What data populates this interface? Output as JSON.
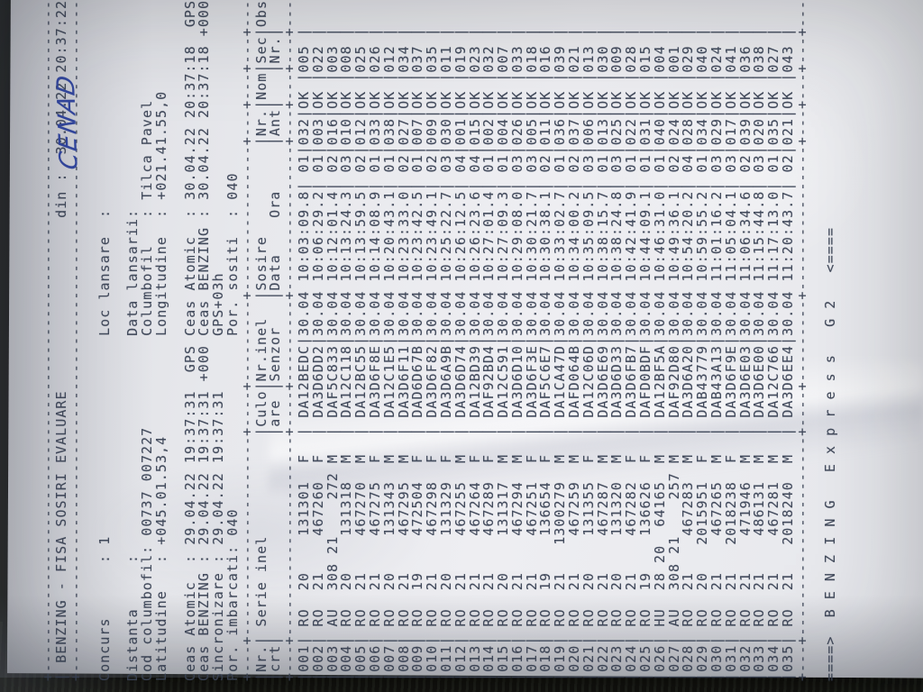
{
  "photo": {
    "paper_color": "#eaebef",
    "ink_color": "#3e4658",
    "pen_color": "#33479f",
    "background_color": "#121410"
  },
  "document": {
    "title": "BENZING - FISA SOSIRI EVALUARE",
    "din_label": "din :",
    "din_value": "30.04.22 20:37:22",
    "handwriting": "CENAD",
    "labels": {
      "concurs": "Concurs      : ",
      "loc_lansare": "Loc lansare  :",
      "distanta": "Distanta     :",
      "data_lansarii": "Data lansarii:",
      "cod_columbofil": "Cod columbofil: ",
      "columbofil": "Columbofil   : ",
      "latitudine": "Latitudine   : ",
      "longitudine": "Longitudine  : ",
      "ceas_atomic": "Ceas Atomic  : ",
      "ceas_benzing": "Ceas BENZING : ",
      "sincronizare": "Sincronizare : ",
      "por_imbarcati": "Por. imbarcati: ",
      "por_sositi": "Por. sositi  : "
    },
    "values": {
      "concurs": "1",
      "cod_columbofil": "00737 007227",
      "columbofil": "Tilca Pavel",
      "latitudine": "+045.01.53,4",
      "longitudine": "+021.41.55,0",
      "ceas_atomic_1": "29.04.22 19:37:31",
      "ceas_atomic_1_suffix": "GPS",
      "ceas_atomic_2": "30.04.22 20:37:18",
      "ceas_atomic_2_suffix": "GPS",
      "ceas_benzing_1": "29.04.22 19:37:31",
      "ceas_benzing_1_suffix": "+000",
      "ceas_benzing_2": "30.04.22 20:37:18",
      "ceas_benzing_2_suffix": "+000",
      "sincronizare": "29.04.22 19:37:31",
      "gps_offset": "GPS+03h",
      "por_imbarcati": "040",
      "por_sositi": "040"
    },
    "table": {
      "header_row_1": [
        "Nr.",
        "Serie inel",
        "Culo",
        "Nr.inel",
        "Sosire",
        "Nr.",
        "Nom",
        "Sec",
        "Obs."
      ],
      "header_row_2": [
        "crt",
        "",
        "are",
        "Senzor",
        "Data    Ora",
        "Ant",
        "",
        "Nr.",
        ""
      ],
      "rows": [
        {
          "nr": "001",
          "serie": "RO  20    131301",
          "sex": "F",
          "senzor": "DA12BEDC",
          "data": "30.04",
          "ora": "10:03:09.8",
          "ant": "01",
          "nom": "032",
          "sec": "OK",
          "obs": "005"
        },
        {
          "nr": "002",
          "serie": "RO  21    467260",
          "sex": "F",
          "senzor": "DA3D6DD2",
          "data": "30.04",
          "ora": "10:06:29.2",
          "ant": "01",
          "nom": "003",
          "sec": "OK",
          "obs": "022"
        },
        {
          "nr": "003",
          "serie": "AU  308 21    272",
          "sex": "M",
          "senzor": "DAF5C833",
          "data": "30.04",
          "ora": "10:12:01.4",
          "ant": "02",
          "nom": "016",
          "sec": "OK",
          "obs": "003"
        },
        {
          "nr": "004",
          "serie": "RO  20    131318",
          "sex": "M",
          "senzor": "DA12C118",
          "data": "30.04",
          "ora": "10:13:24.3",
          "ant": "03",
          "nom": "010",
          "sec": "OK",
          "obs": "008"
        },
        {
          "nr": "005",
          "serie": "RO  21    467270",
          "sex": "M",
          "senzor": "DA12BC55",
          "data": "30.04",
          "ora": "10:13:59.5",
          "ant": "02",
          "nom": "012",
          "sec": "OK",
          "obs": "025"
        },
        {
          "nr": "006",
          "serie": "RO  21    467275",
          "sex": "F",
          "senzor": "DA3D6F8E",
          "data": "30.04",
          "ora": "10:14:08.9",
          "ant": "01",
          "nom": "033",
          "sec": "OK",
          "obs": "026"
        },
        {
          "nr": "007",
          "serie": "RO  20    131343",
          "sex": "M",
          "senzor": "DA12C1E5",
          "data": "30.04",
          "ora": "10:20:43.1",
          "ant": "01",
          "nom": "038",
          "sec": "OK",
          "obs": "012"
        },
        {
          "nr": "008",
          "serie": "RO  21    467295",
          "sex": "M",
          "senzor": "DA3D6F11",
          "data": "30.04",
          "ora": "10:23:33.0",
          "ant": "02",
          "nom": "027",
          "sec": "OK",
          "obs": "034"
        },
        {
          "nr": "009",
          "serie": "RO  19    472504",
          "sex": "F",
          "senzor": "DAD6D67B",
          "data": "30.04",
          "ora": "10:23:42.5",
          "ant": "01",
          "nom": "007",
          "sec": "OK",
          "obs": "037"
        },
        {
          "nr": "010",
          "serie": "RO  21    467298",
          "sex": "F",
          "senzor": "DA3D6F82",
          "data": "30.04",
          "ora": "10:23:49.1",
          "ant": "02",
          "nom": "009",
          "sec": "OK",
          "obs": "035"
        },
        {
          "nr": "011",
          "serie": "RO  20    131329",
          "sex": "F",
          "senzor": "DA3D6A9B",
          "data": "30.04",
          "ora": "10:25:22.7",
          "ant": "03",
          "nom": "030",
          "sec": "OK",
          "obs": "011"
        },
        {
          "nr": "012",
          "serie": "RO  21    467255",
          "sex": "M",
          "senzor": "DA3D6D74",
          "data": "30.04",
          "ora": "10:26:12.5",
          "ant": "04",
          "nom": "001",
          "sec": "OK",
          "obs": "019"
        },
        {
          "nr": "013",
          "serie": "RO  21    467264",
          "sex": "F",
          "senzor": "DA12BD39",
          "data": "30.04",
          "ora": "10:26:23.6",
          "ant": "04",
          "nom": "015",
          "sec": "OK",
          "obs": "023"
        },
        {
          "nr": "014",
          "serie": "RO  21    467289",
          "sex": "F",
          "senzor": "DAF92BD4",
          "data": "30.04",
          "ora": "10:27:01.4",
          "ant": "01",
          "nom": "002",
          "sec": "OK",
          "obs": "032"
        },
        {
          "nr": "015",
          "serie": "RO  20    131317",
          "sex": "M",
          "senzor": "DA12C591",
          "data": "30.04",
          "ora": "10:27:09.3",
          "ant": "01",
          "nom": "004",
          "sec": "OK",
          "obs": "007"
        },
        {
          "nr": "016",
          "serie": "RO  21    467294",
          "sex": "M",
          "senzor": "DA3D6D10",
          "data": "30.04",
          "ora": "10:29:08.0",
          "ant": "03",
          "nom": "026",
          "sec": "OK",
          "obs": "033"
        },
        {
          "nr": "017",
          "serie": "RO  21    467251",
          "sex": "F",
          "senzor": "DA3D6F3E",
          "data": "30.04",
          "ora": "10:30:21.7",
          "ant": "03",
          "nom": "005",
          "sec": "OK",
          "obs": "018"
        },
        {
          "nr": "018",
          "serie": "RO  19    136654",
          "sex": "F",
          "senzor": "DAF5C6E7",
          "data": "30.04",
          "ora": "10:30:38.1",
          "ant": "02",
          "nom": "011",
          "sec": "OK",
          "obs": "016"
        },
        {
          "nr": "019",
          "serie": "RO  21   1300279",
          "sex": "M",
          "senzor": "DA1CA47D",
          "data": "30.04",
          "ora": "10:33:02.7",
          "ant": "01",
          "nom": "036",
          "sec": "OK",
          "obs": "039"
        },
        {
          "nr": "020",
          "serie": "RO  21    467259",
          "sex": "M",
          "senzor": "DAFD064B",
          "data": "30.04",
          "ora": "10:34:00.2",
          "ant": "02",
          "nom": "037",
          "sec": "OK",
          "obs": "021"
        },
        {
          "nr": "021",
          "serie": "RO  20    131355",
          "sex": "F",
          "senzor": "DA12C06D",
          "data": "30.04",
          "ora": "10:35:09.5",
          "ant": "03",
          "nom": "006",
          "sec": "OK",
          "obs": "013"
        },
        {
          "nr": "022",
          "serie": "RO  21    467287",
          "sex": "M",
          "senzor": "DA3D6E69",
          "data": "30.04",
          "ora": "10:38:15.7",
          "ant": "01",
          "nom": "013",
          "sec": "OK",
          "obs": "030"
        },
        {
          "nr": "023",
          "serie": "RO  20    131320",
          "sex": "M",
          "senzor": "DA3D6D33",
          "data": "30.04",
          "ora": "10:38:24.8",
          "ant": "03",
          "nom": "025",
          "sec": "OK",
          "obs": "009"
        },
        {
          "nr": "024",
          "serie": "RO  21    467282",
          "sex": "F",
          "senzor": "DA3D6FB7",
          "data": "30.04",
          "ora": "10:42:41.9",
          "ant": "01",
          "nom": "022",
          "sec": "OK",
          "obs": "028"
        },
        {
          "nr": "025",
          "serie": "RO  19    136626",
          "sex": "F",
          "senzor": "DAFD0BDF",
          "data": "30.04",
          "ora": "10:44:09.1",
          "ant": "01",
          "nom": "031",
          "sec": "OK",
          "obs": "015"
        },
        {
          "nr": "026",
          "serie": "HU  28 20  64165",
          "sex": "M",
          "senzor": "DA12BF5A",
          "data": "30.04",
          "ora": "10:46:31.0",
          "ant": "01",
          "nom": "040",
          "sec": "OK",
          "obs": "004"
        },
        {
          "nr": "027",
          "serie": "AU  308 21    257",
          "sex": "M",
          "senzor": "DAF92D80",
          "data": "30.04",
          "ora": "10:49:36.1",
          "ant": "02",
          "nom": "024",
          "sec": "OK",
          "obs": "001"
        },
        {
          "nr": "028",
          "serie": "RO  21    467283",
          "sex": "M",
          "senzor": "DA3D6A20",
          "data": "30.04",
          "ora": "10:54:20.2",
          "ant": "04",
          "nom": "028",
          "sec": "OK",
          "obs": "029"
        },
        {
          "nr": "029",
          "serie": "RO  20   2015951",
          "sex": "F",
          "senzor": "DAB43779",
          "data": "30.04",
          "ora": "10:59:55.2",
          "ant": "01",
          "nom": "034",
          "sec": "OK",
          "obs": "040"
        },
        {
          "nr": "030",
          "serie": "RO  21    467265",
          "sex": "M",
          "senzor": "DAB43A13",
          "data": "30.04",
          "ora": "11:01:16.2",
          "ant": "03",
          "nom": "029",
          "sec": "OK",
          "obs": "024"
        },
        {
          "nr": "031",
          "serie": "RO  21   2018238",
          "sex": "F",
          "senzor": "DA3D6F9E",
          "data": "30.04",
          "ora": "11:05:04.1",
          "ant": "03",
          "nom": "017",
          "sec": "OK",
          "obs": "041"
        },
        {
          "nr": "032",
          "serie": "RO  21    471946",
          "sex": "M",
          "senzor": "DA3D6E03",
          "data": "30.04",
          "ora": "11:06:34.6",
          "ant": "02",
          "nom": "039",
          "sec": "OK",
          "obs": "036"
        },
        {
          "nr": "033",
          "serie": "RO  21    486131",
          "sex": "M",
          "senzor": "DA3D6E00",
          "data": "30.04",
          "ora": "11:15:44.8",
          "ant": "03",
          "nom": "020",
          "sec": "OK",
          "obs": "038"
        },
        {
          "nr": "034",
          "serie": "RO  21    467281",
          "sex": "M",
          "senzor": "DA12C766",
          "data": "30.04",
          "ora": "11:17:13.0",
          "ant": "01",
          "nom": "035",
          "sec": "OK",
          "obs": "027"
        },
        {
          "nr": "035",
          "serie": "RO  21   2018240",
          "sex": "M",
          "senzor": "DA3D6EE4",
          "data": "30.04",
          "ora": "11:20:43.7",
          "ant": "02",
          "nom": "021",
          "sec": "OK",
          "obs": "043"
        }
      ]
    },
    "footer": "====>  B E N Z I N G   E x p r e s s   G 2   <===="
  }
}
